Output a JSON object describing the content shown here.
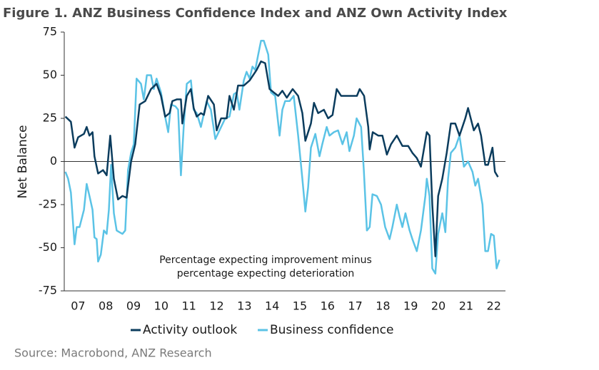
{
  "chart_data": {
    "type": "line",
    "title": "Figure 1.  ANZ Business Confidence Index and ANZ Own Activity Index",
    "ylabel": "Net Balance",
    "annotation": [
      "Percentage expecting improvement minus",
      "percentage expecting deterioration"
    ],
    "source": "Source: Macrobond, ANZ Research",
    "xlim": [
      2007,
      2022.92
    ],
    "xticks": [
      {
        "value": 2007.5,
        "label": "07"
      },
      {
        "value": 2008.5,
        "label": "08"
      },
      {
        "value": 2009.5,
        "label": "09"
      },
      {
        "value": 2010.5,
        "label": "10"
      },
      {
        "value": 2011.5,
        "label": "11"
      },
      {
        "value": 2012.5,
        "label": "12"
      },
      {
        "value": 2013.5,
        "label": "13"
      },
      {
        "value": 2014.5,
        "label": "14"
      },
      {
        "value": 2015.5,
        "label": "15"
      },
      {
        "value": 2016.5,
        "label": "16"
      },
      {
        "value": 2017.5,
        "label": "17"
      },
      {
        "value": 2018.5,
        "label": "18"
      },
      {
        "value": 2019.5,
        "label": "19"
      },
      {
        "value": 2020.5,
        "label": "20"
      },
      {
        "value": 2021.5,
        "label": "21"
      },
      {
        "value": 2022.5,
        "label": "22"
      }
    ],
    "ylim": [
      -75,
      75
    ],
    "yticks": [
      -75,
      -50,
      -25,
      0,
      25,
      50,
      75
    ],
    "series": [
      {
        "name": "Activity outlook",
        "color": "#0b3c5d",
        "x": [
          2007.04,
          2007.24,
          2007.37,
          2007.5,
          2007.71,
          2007.81,
          2007.91,
          2008.02,
          2008.09,
          2008.22,
          2008.4,
          2008.53,
          2008.66,
          2008.79,
          2008.94,
          2009.1,
          2009.25,
          2009.41,
          2009.56,
          2009.72,
          2009.92,
          2010.13,
          2010.33,
          2010.49,
          2010.64,
          2010.8,
          2010.9,
          2011.06,
          2011.21,
          2011.26,
          2011.42,
          2011.57,
          2011.67,
          2011.78,
          2011.93,
          2012.04,
          2012.19,
          2012.4,
          2012.5,
          2012.66,
          2012.86,
          2012.96,
          2013.12,
          2013.27,
          2013.48,
          2013.69,
          2013.94,
          2014.1,
          2014.25,
          2014.41,
          2014.56,
          2014.72,
          2014.87,
          2015.03,
          2015.24,
          2015.44,
          2015.59,
          2015.7,
          2015.9,
          2016.01,
          2016.16,
          2016.37,
          2016.52,
          2016.68,
          2016.83,
          2016.99,
          2017.2,
          2017.4,
          2017.56,
          2017.66,
          2017.82,
          2017.97,
          2018.02,
          2018.13,
          2018.33,
          2018.48,
          2018.64,
          2018.79,
          2019.0,
          2019.2,
          2019.41,
          2019.56,
          2019.72,
          2019.87,
          2020.08,
          2020.18,
          2020.28,
          2020.39,
          2020.49,
          2020.64,
          2020.8,
          2020.95,
          2021.11,
          2021.26,
          2021.47,
          2021.57,
          2021.78,
          2021.93,
          2022.04,
          2022.19,
          2022.29,
          2022.45,
          2022.54,
          2022.65
        ],
        "values": [
          26,
          23,
          8,
          14,
          16,
          20,
          15,
          17,
          3,
          -7,
          -5,
          -8,
          15,
          -10,
          -22,
          -20,
          -21,
          0,
          10,
          33,
          35,
          42,
          45,
          38,
          26,
          28,
          35,
          36,
          36,
          22,
          38,
          42,
          31,
          26,
          28,
          27,
          38,
          33,
          18,
          25,
          25,
          38,
          30,
          44,
          44,
          47,
          53,
          58,
          57,
          42,
          40,
          38,
          41,
          37,
          42,
          38,
          28,
          12,
          22,
          34,
          28,
          30,
          25,
          27,
          42,
          38,
          38,
          38,
          38,
          42,
          38,
          20,
          7,
          17,
          15,
          15,
          4,
          10,
          15,
          9,
          9,
          5,
          2,
          -3,
          17,
          15,
          -25,
          -55,
          -20,
          -10,
          5,
          22,
          22,
          15,
          25,
          31,
          18,
          22,
          15,
          -2,
          -2,
          8,
          -6,
          -9
        ]
      },
      {
        "name": "Business confidence",
        "color": "#5bc3e6",
        "x": [
          2007.04,
          2007.14,
          2007.24,
          2007.37,
          2007.45,
          2007.55,
          2007.71,
          2007.81,
          2007.91,
          2008.02,
          2008.09,
          2008.17,
          2008.22,
          2008.32,
          2008.43,
          2008.53,
          2008.61,
          2008.69,
          2008.79,
          2008.89,
          2008.99,
          2009.1,
          2009.2,
          2009.3,
          2009.41,
          2009.51,
          2009.61,
          2009.77,
          2009.87,
          2009.98,
          2010.13,
          2010.23,
          2010.33,
          2010.49,
          2010.64,
          2010.75,
          2010.85,
          2011.01,
          2011.11,
          2011.21,
          2011.31,
          2011.42,
          2011.57,
          2011.67,
          2011.78,
          2011.93,
          2012.14,
          2012.29,
          2012.45,
          2012.6,
          2012.81,
          2012.96,
          2013.12,
          2013.22,
          2013.32,
          2013.48,
          2013.58,
          2013.69,
          2013.79,
          2013.89,
          2014.0,
          2014.1,
          2014.2,
          2014.36,
          2014.46,
          2014.61,
          2014.77,
          2014.87,
          2014.97,
          2015.13,
          2015.28,
          2015.44,
          2015.59,
          2015.7,
          2015.8,
          2015.9,
          2016.06,
          2016.21,
          2016.31,
          2016.47,
          2016.57,
          2016.73,
          2016.88,
          2017.04,
          2017.19,
          2017.29,
          2017.45,
          2017.55,
          2017.71,
          2017.81,
          2017.92,
          2018.02,
          2018.12,
          2018.28,
          2018.43,
          2018.58,
          2018.74,
          2018.84,
          2019.0,
          2019.1,
          2019.2,
          2019.31,
          2019.46,
          2019.56,
          2019.72,
          2019.87,
          2020.03,
          2020.08,
          2020.18,
          2020.28,
          2020.39,
          2020.49,
          2020.64,
          2020.75,
          2020.85,
          2020.95,
          2021.11,
          2021.26,
          2021.42,
          2021.57,
          2021.73,
          2021.83,
          2021.93,
          2022.09,
          2022.19,
          2022.29,
          2022.4,
          2022.5,
          2022.6,
          2022.7
        ],
        "values": [
          -6,
          -10,
          -18,
          -48,
          -38,
          -38,
          -28,
          -13,
          -20,
          -28,
          -44,
          -45,
          -58,
          -54,
          -40,
          -42,
          -28,
          -2,
          -30,
          -40,
          -41,
          -42,
          -40,
          -5,
          5,
          10,
          48,
          45,
          36,
          50,
          50,
          42,
          48,
          40,
          26,
          17,
          33,
          32,
          30,
          -8,
          20,
          45,
          47,
          30,
          28,
          20,
          35,
          30,
          13,
          18,
          25,
          26,
          39,
          40,
          30,
          47,
          52,
          48,
          55,
          53,
          62,
          70,
          70,
          62,
          40,
          38,
          15,
          30,
          35,
          35,
          38,
          15,
          -10,
          -29,
          -15,
          8,
          16,
          3,
          10,
          20,
          15,
          17,
          18,
          10,
          17,
          6,
          15,
          25,
          20,
          -5,
          -40,
          -38,
          -19,
          -20,
          -25,
          -38,
          -45,
          -38,
          -25,
          -32,
          -38,
          -30,
          -40,
          -45,
          -52,
          -40,
          -20,
          -10,
          -20,
          -62,
          -65,
          -42,
          -30,
          -41,
          -10,
          5,
          8,
          15,
          -3,
          0,
          -6,
          -14,
          -10,
          -25,
          -52,
          -52,
          -42,
          -43,
          -62,
          -57
        ]
      }
    ]
  }
}
